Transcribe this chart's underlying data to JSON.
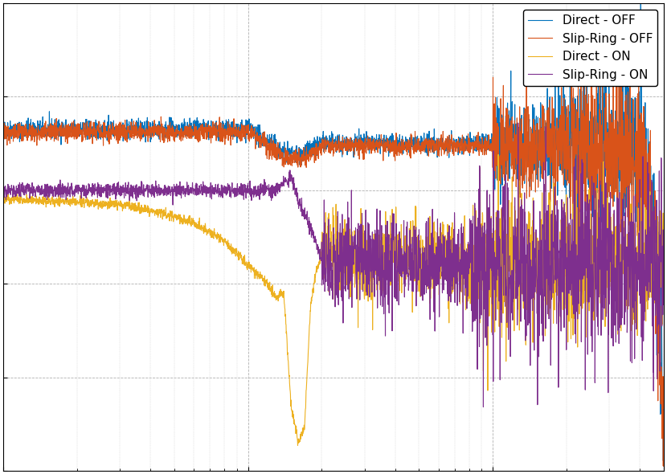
{
  "legend_entries": [
    "Direct - OFF",
    "Slip-Ring - OFF",
    "Direct - ON",
    "Slip-Ring - ON"
  ],
  "line_colors": [
    "#0072BD",
    "#D95319",
    "#EDB120",
    "#7E2F8E"
  ],
  "background_color": "#ffffff",
  "grid_color": "#b0b0b0",
  "seed": 42
}
